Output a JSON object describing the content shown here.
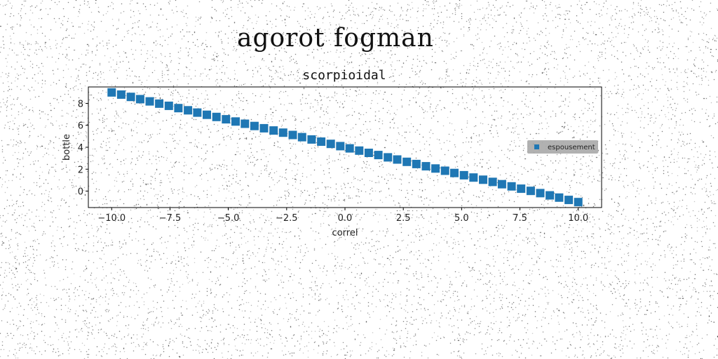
{
  "figure": {
    "suptitle": "agorot fogman"
  },
  "colors": {
    "marker": "#1f77b4",
    "legend_bg": "#a8a8a8",
    "background": "#ffffff"
  },
  "chart_data": {
    "type": "scatter",
    "title": "scorpioidal",
    "xlabel": "correl",
    "ylabel": "bottle",
    "xlim": [
      -11.0,
      11.0
    ],
    "ylim": [
      -1.5,
      9.5
    ],
    "xticks": [
      -10.0,
      -7.5,
      -5.0,
      -2.5,
      0.0,
      2.5,
      5.0,
      7.5,
      10.0
    ],
    "xtick_labels": [
      "−10.0",
      "−7.5",
      "−5.0",
      "−2.5",
      "0.0",
      "2.5",
      "5.0",
      "7.5",
      "10.0"
    ],
    "yticks": [
      0,
      2,
      4,
      6,
      8
    ],
    "ytick_labels": [
      "0",
      "2",
      "4",
      "6",
      "8"
    ],
    "legend_position": "center-right",
    "series": [
      {
        "name": "espousement",
        "marker": "square",
        "x": [
          -10.0,
          -9.59,
          -9.18,
          -8.78,
          -8.37,
          -7.96,
          -7.55,
          -7.14,
          -6.73,
          -6.33,
          -5.92,
          -5.51,
          -5.1,
          -4.69,
          -4.29,
          -3.88,
          -3.47,
          -3.06,
          -2.65,
          -2.24,
          -1.84,
          -1.43,
          -1.02,
          -0.61,
          -0.2,
          0.2,
          0.61,
          1.02,
          1.43,
          1.84,
          2.24,
          2.65,
          3.06,
          3.47,
          3.88,
          4.29,
          4.69,
          5.1,
          5.51,
          5.92,
          6.33,
          6.73,
          7.14,
          7.55,
          7.96,
          8.37,
          8.78,
          9.18,
          9.59,
          10.0
        ],
        "y": [
          9.0,
          8.8,
          8.59,
          8.39,
          8.18,
          7.98,
          7.78,
          7.57,
          7.37,
          7.16,
          6.96,
          6.76,
          6.55,
          6.35,
          6.14,
          5.94,
          5.73,
          5.53,
          5.33,
          5.12,
          4.92,
          4.71,
          4.51,
          4.31,
          4.1,
          3.9,
          3.69,
          3.49,
          3.29,
          3.08,
          2.88,
          2.67,
          2.47,
          2.27,
          2.06,
          1.86,
          1.65,
          1.45,
          1.24,
          1.04,
          0.84,
          0.63,
          0.43,
          0.22,
          0.02,
          -0.18,
          -0.39,
          -0.59,
          -0.8,
          -1.0
        ]
      }
    ]
  }
}
